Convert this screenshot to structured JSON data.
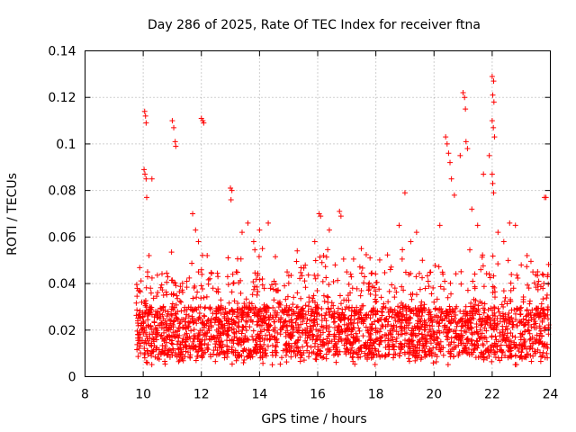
{
  "chart_data": {
    "type": "scatter",
    "title": "Day 286 of 2025, Rate Of TEC Index for receiver ftna",
    "xlabel": "GPS time / hours",
    "ylabel": "ROTI / TECUs",
    "xlim": [
      8,
      24
    ],
    "ylim": [
      0,
      0.14
    ],
    "xticks": [
      8,
      10,
      12,
      14,
      16,
      18,
      20,
      22,
      24
    ],
    "yticks": [
      0,
      0.02,
      0.04,
      0.06,
      0.08,
      0.1,
      0.12,
      0.14
    ],
    "grid": true,
    "marker": "plus",
    "color": "#ff0000",
    "series": [
      {
        "name": "ROTI",
        "points": [
          [
            9.85,
            0.018
          ],
          [
            9.9,
            0.025
          ],
          [
            9.95,
            0.032
          ],
          [
            10.0,
            0.021
          ],
          [
            10.05,
            0.114
          ],
          [
            10.08,
            0.112
          ],
          [
            10.1,
            0.109
          ],
          [
            10.03,
            0.089
          ],
          [
            10.06,
            0.087
          ],
          [
            10.1,
            0.085
          ],
          [
            10.12,
            0.077
          ],
          [
            10.3,
            0.085
          ],
          [
            10.15,
            0.045
          ],
          [
            10.2,
            0.052
          ],
          [
            10.25,
            0.038
          ],
          [
            10.5,
            0.028
          ],
          [
            10.7,
            0.035
          ],
          [
            10.9,
            0.022
          ],
          [
            11.0,
            0.11
          ],
          [
            11.05,
            0.107
          ],
          [
            11.1,
            0.101
          ],
          [
            11.12,
            0.099
          ],
          [
            11.3,
            0.032
          ],
          [
            11.5,
            0.041
          ],
          [
            11.7,
            0.025
          ],
          [
            11.9,
            0.045
          ],
          [
            12.0,
            0.111
          ],
          [
            12.05,
            0.11
          ],
          [
            12.08,
            0.109
          ],
          [
            11.7,
            0.07
          ],
          [
            11.8,
            0.063
          ],
          [
            11.9,
            0.058
          ],
          [
            12.2,
            0.052
          ],
          [
            12.4,
            0.038
          ],
          [
            12.6,
            0.029
          ],
          [
            12.8,
            0.022
          ],
          [
            13.0,
            0.081
          ],
          [
            13.05,
            0.08
          ],
          [
            13.02,
            0.076
          ],
          [
            13.2,
            0.045
          ],
          [
            13.4,
            0.062
          ],
          [
            13.6,
            0.066
          ],
          [
            13.8,
            0.058
          ],
          [
            14.0,
            0.063
          ],
          [
            14.1,
            0.055
          ],
          [
            14.3,
            0.066
          ],
          [
            14.5,
            0.041
          ],
          [
            14.7,
            0.032
          ],
          [
            14.9,
            0.024
          ],
          [
            15.1,
            0.029
          ],
          [
            15.3,
            0.036
          ],
          [
            15.5,
            0.027
          ],
          [
            15.7,
            0.019
          ],
          [
            15.9,
            0.058
          ],
          [
            16.05,
            0.07
          ],
          [
            16.1,
            0.069
          ],
          [
            16.2,
            0.052
          ],
          [
            16.4,
            0.063
          ],
          [
            16.6,
            0.048
          ],
          [
            16.75,
            0.071
          ],
          [
            16.8,
            0.069
          ],
          [
            17.0,
            0.045
          ],
          [
            17.2,
            0.038
          ],
          [
            17.5,
            0.055
          ],
          [
            17.8,
            0.051
          ],
          [
            18.0,
            0.035
          ],
          [
            18.2,
            0.028
          ],
          [
            18.5,
            0.046
          ],
          [
            18.8,
            0.065
          ],
          [
            19.0,
            0.079
          ],
          [
            19.2,
            0.058
          ],
          [
            19.4,
            0.062
          ],
          [
            19.6,
            0.05
          ],
          [
            19.8,
            0.041
          ],
          [
            20.0,
            0.032
          ],
          [
            20.2,
            0.065
          ],
          [
            20.4,
            0.103
          ],
          [
            20.45,
            0.1
          ],
          [
            20.5,
            0.096
          ],
          [
            20.55,
            0.092
          ],
          [
            20.6,
            0.085
          ],
          [
            20.7,
            0.078
          ],
          [
            20.9,
            0.095
          ],
          [
            21.0,
            0.122
          ],
          [
            21.05,
            0.12
          ],
          [
            21.08,
            0.115
          ],
          [
            21.1,
            0.101
          ],
          [
            21.15,
            0.098
          ],
          [
            21.3,
            0.072
          ],
          [
            21.5,
            0.065
          ],
          [
            21.7,
            0.087
          ],
          [
            21.9,
            0.095
          ],
          [
            22.0,
            0.129
          ],
          [
            22.05,
            0.127
          ],
          [
            22.02,
            0.121
          ],
          [
            22.06,
            0.118
          ],
          [
            22.0,
            0.11
          ],
          [
            22.04,
            0.107
          ],
          [
            22.08,
            0.103
          ],
          [
            22.0,
            0.087
          ],
          [
            22.02,
            0.083
          ],
          [
            22.05,
            0.079
          ],
          [
            22.2,
            0.062
          ],
          [
            22.4,
            0.058
          ],
          [
            22.6,
            0.066
          ],
          [
            22.8,
            0.065
          ],
          [
            23.0,
            0.048
          ],
          [
            23.2,
            0.052
          ],
          [
            23.4,
            0.045
          ],
          [
            23.6,
            0.041
          ],
          [
            23.8,
            0.077
          ],
          [
            23.85,
            0.077
          ],
          [
            23.9,
            0.043
          ]
        ]
      }
    ]
  }
}
